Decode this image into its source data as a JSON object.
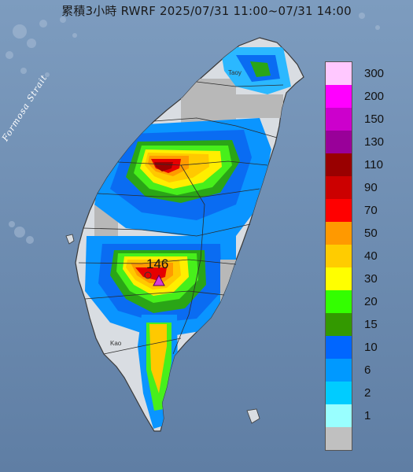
{
  "title": "累積3小時 RWRF 2025/07/31 11:00~07/31 14:00",
  "sea_label": "Formosa Strait",
  "peak": {
    "value": "146"
  },
  "place_labels": [
    "Taoy",
    "Kao"
  ],
  "colors": {
    "sea": "#6f8fb2",
    "land": "#d8dde3",
    "border": "#2a2a2a",
    "peak_marker": "#d63bd6"
  },
  "legend": {
    "entries": [
      {
        "label": "300",
        "color": "#ffc8ff"
      },
      {
        "label": "200",
        "color": "#ff00ff"
      },
      {
        "label": "150",
        "color": "#cc00cc"
      },
      {
        "label": "130",
        "color": "#990099"
      },
      {
        "label": "110",
        "color": "#990000"
      },
      {
        "label": "90",
        "color": "#cc0000"
      },
      {
        "label": "70",
        "color": "#ff0000"
      },
      {
        "label": "50",
        "color": "#ff9900"
      },
      {
        "label": "40",
        "color": "#ffcc00"
      },
      {
        "label": "30",
        "color": "#ffff00"
      },
      {
        "label": "20",
        "color": "#33ff00"
      },
      {
        "label": "15",
        "color": "#339900"
      },
      {
        "label": "10",
        "color": "#0066ff"
      },
      {
        "label": "6",
        "color": "#0099ff"
      },
      {
        "label": "2",
        "color": "#00ccff"
      },
      {
        "label": "1",
        "color": "#99ffff"
      },
      {
        "label": "",
        "color": "#c0c0c0"
      }
    ]
  }
}
